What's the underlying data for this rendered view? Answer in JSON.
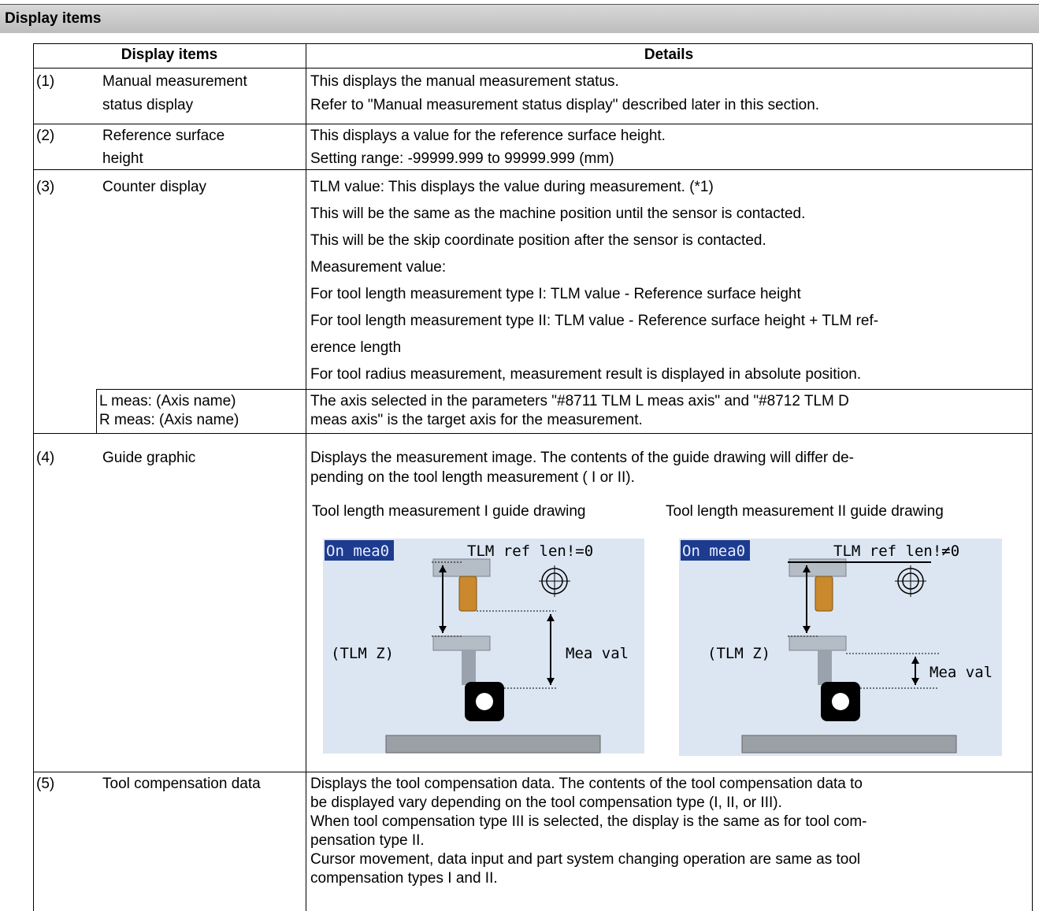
{
  "header": {
    "title": "Display items"
  },
  "table": {
    "columns": [
      "Display items",
      "Details"
    ],
    "rows": [
      {
        "number": "(1)",
        "item": [
          "Manual measurement",
          "status display"
        ],
        "details": [
          "This displays the manual measurement status.",
          "Refer to \"Manual measurement status display\" described later in this section."
        ]
      },
      {
        "number": "(2)",
        "item": [
          "Reference surface",
          "height"
        ],
        "details": [
          "This displays a value for the reference surface height.",
          "Setting range: -99999.999 to 99999.999 (mm)"
        ]
      },
      {
        "number": "(3)",
        "item": [
          "Counter display"
        ],
        "details": [
          "TLM value: This displays the value during measurement. (*1)",
          "This will be the same as the machine position until the sensor is contacted.",
          "This will be the skip coordinate position after the sensor is contacted.",
          "Measurement value:",
          "For tool length measurement type I: TLM value - Reference surface height",
          "For tool length measurement type II: TLM value - Reference surface height + TLM ref-",
          "erence length",
          "For tool radius measurement, measurement result is displayed in absolute position."
        ]
      },
      {
        "item": [
          "L meas: (Axis name)",
          "R meas: (Axis name)"
        ],
        "details": [
          "The axis selected in the parameters \"#8711 TLM L meas axis\" and \"#8712 TLM D",
          "meas axis\" is the target axis for the measurement."
        ]
      },
      {
        "number": "(4)",
        "item": [
          "Guide graphic"
        ],
        "details": [
          "Displays the measurement image. The contents of the guide drawing will differ de-",
          "pending on the tool length measurement ( I or II)."
        ],
        "figures": [
          {
            "caption": "Tool length measurement I guide drawing",
            "status": "On mea0",
            "ref": "TLM ref len!=0",
            "axis": "(TLM Z)",
            "value": "Mea val"
          },
          {
            "caption": "Tool length measurement II guide drawing",
            "status": "On mea0",
            "ref": "TLM ref len!≠0",
            "axis": "(TLM Z)",
            "value": "Mea val"
          }
        ]
      },
      {
        "number": "(5)",
        "item": [
          "Tool compensation data"
        ],
        "details": [
          "Displays the tool compensation data. The contents of the tool compensation data to",
          "be displayed vary depending on the tool compensation type (I, II, or III).",
          "When tool compensation type III is selected, the display is the same as for tool com-",
          "pensation type II.",
          "Cursor movement, data input and part system changing operation are same as tool",
          "compensation types I and II."
        ]
      }
    ]
  }
}
